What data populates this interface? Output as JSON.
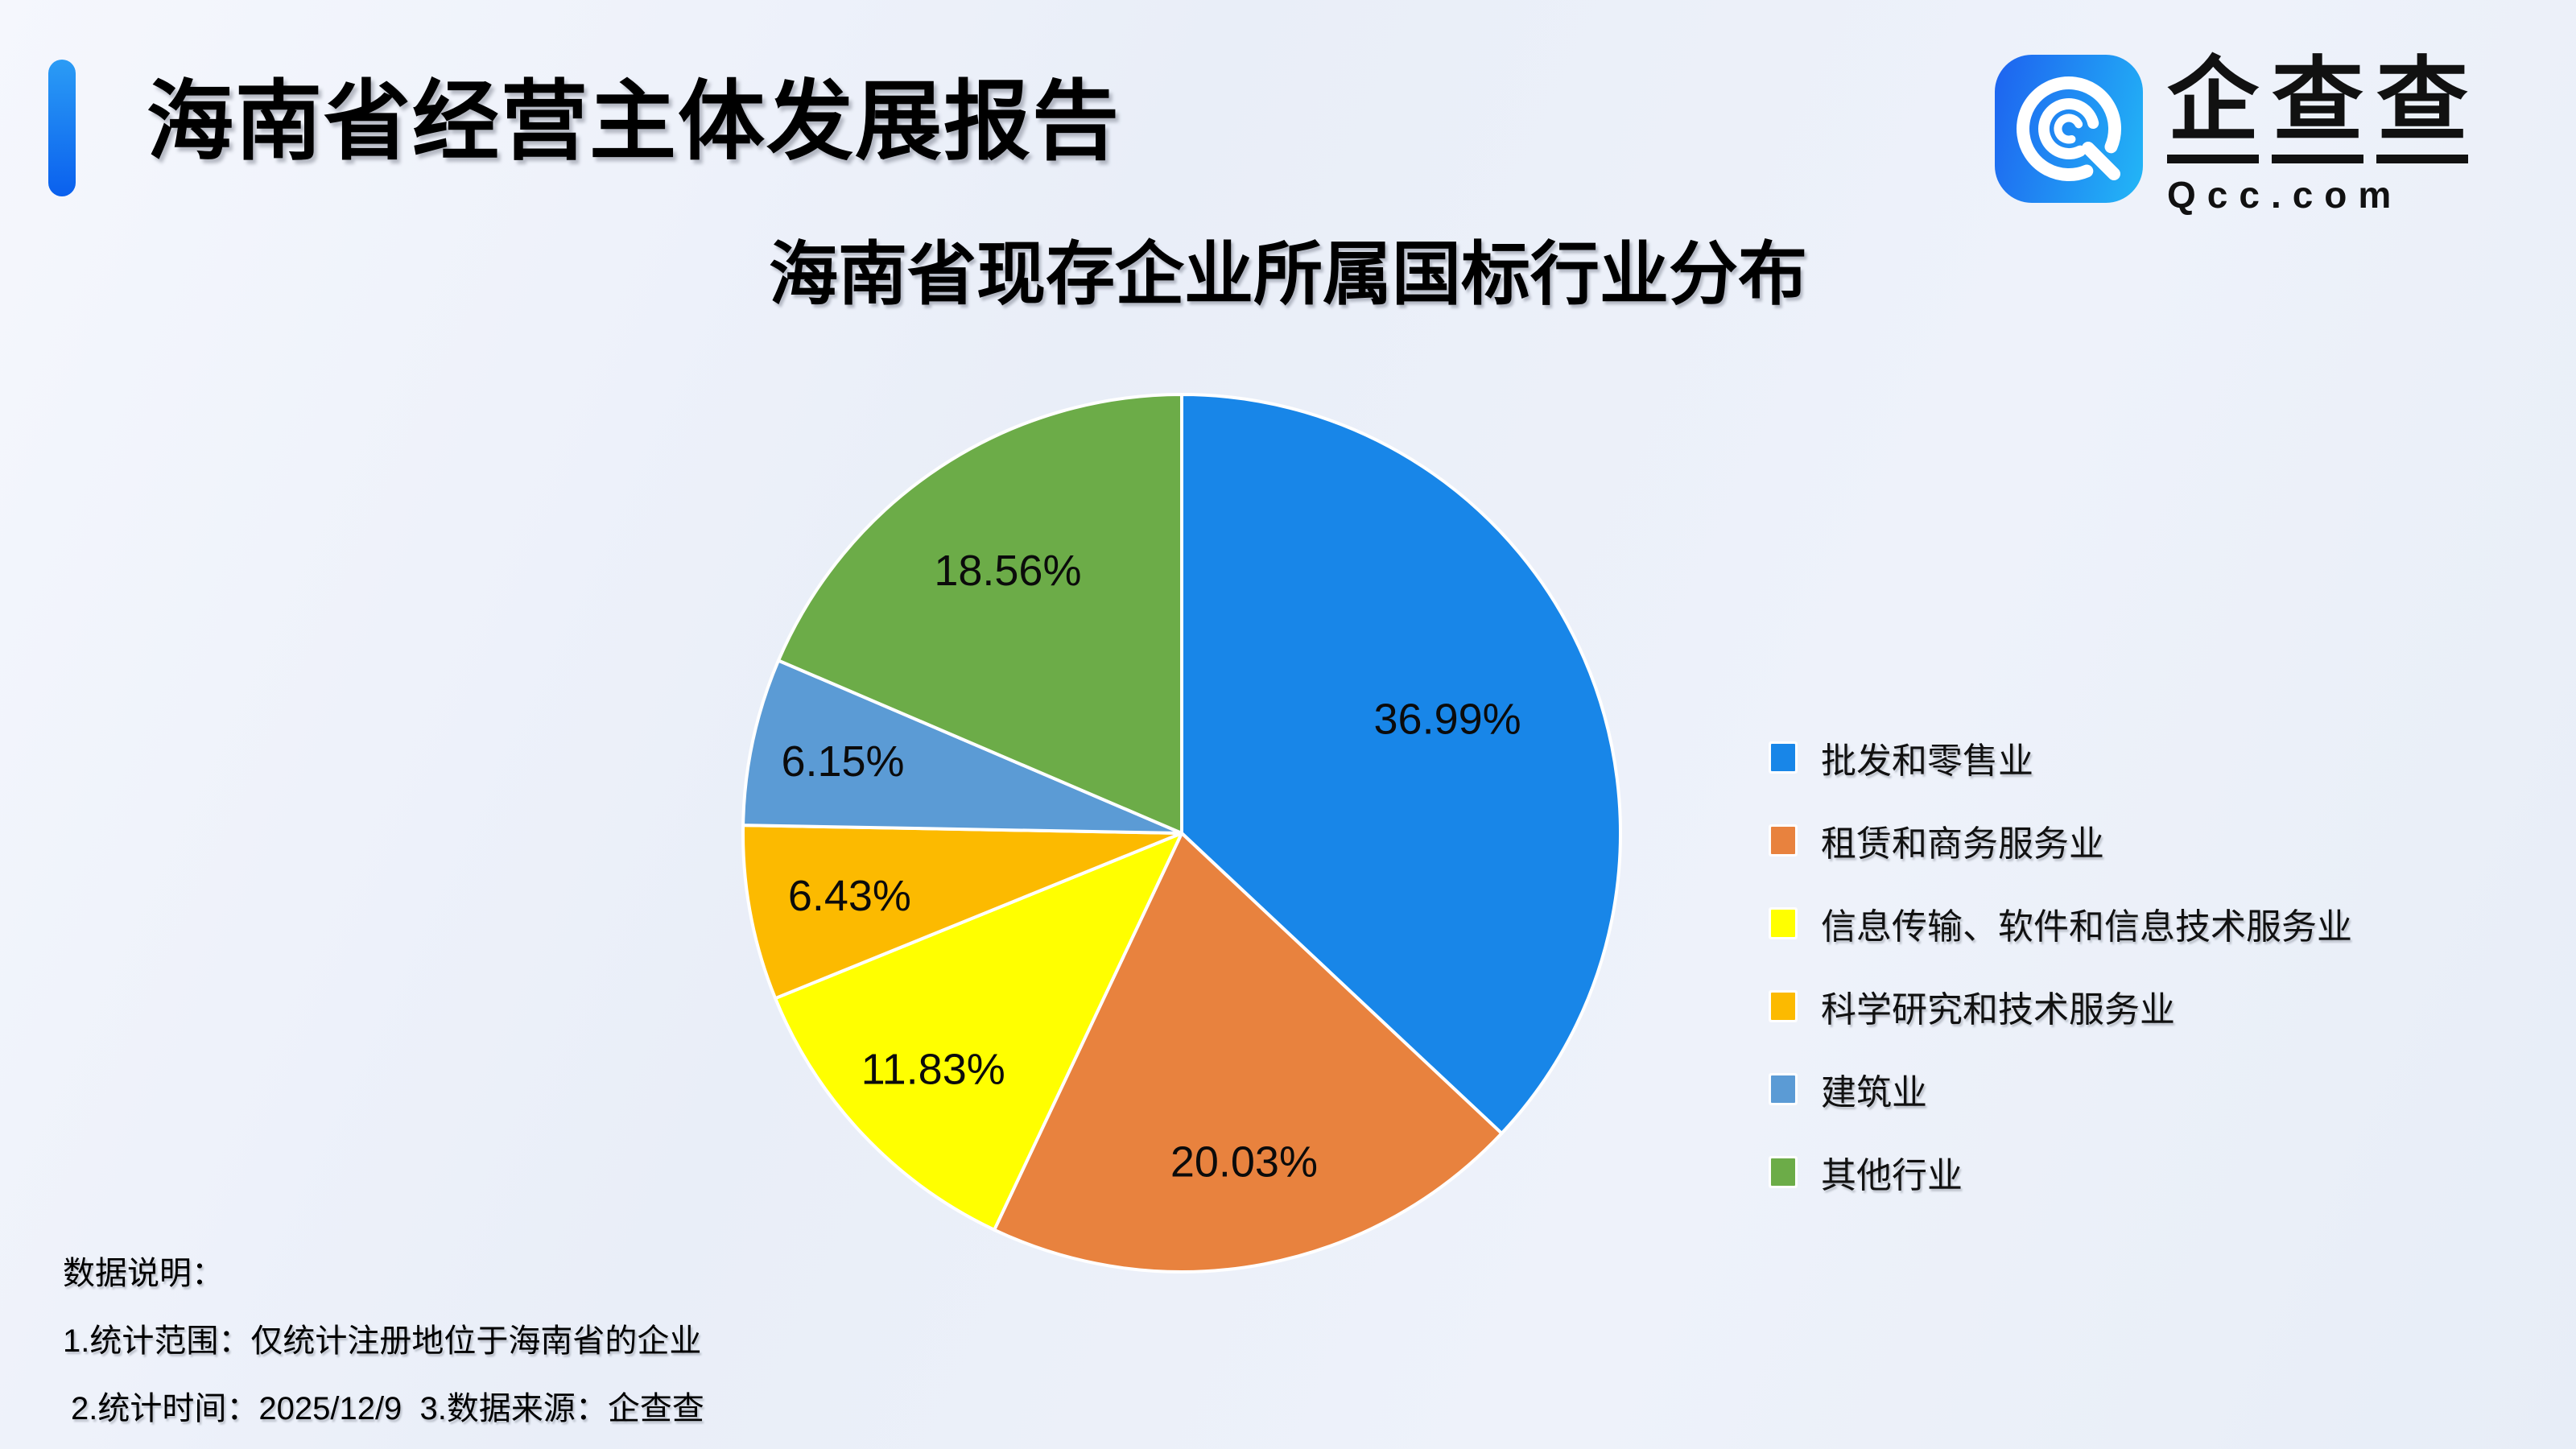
{
  "header": {
    "title": "海南省经营主体发展报告"
  },
  "logo": {
    "brand": "企查查",
    "domain": "Qcc.com",
    "icon": "qcc-logo-icon"
  },
  "chart_data": {
    "type": "pie",
    "title": "海南省现存企业所属国标行业分布",
    "unit": "%",
    "slices": [
      {
        "label": "批发和零售业",
        "value": 36.99,
        "display": "36.99%",
        "color": "#1886E8"
      },
      {
        "label": "租赁和商务服务业",
        "value": 20.03,
        "display": "20.03%",
        "color": "#E8823E"
      },
      {
        "label": "信息传输、软件和信息技术服务业",
        "value": 11.83,
        "display": "11.83%",
        "color": "#FFFF00"
      },
      {
        "label": "科学研究和技术服务业",
        "value": 6.43,
        "display": "6.43%",
        "color": "#FCBA00"
      },
      {
        "label": "建筑业",
        "value": 6.15,
        "display": "6.15%",
        "color": "#5B9BD5"
      },
      {
        "label": "其他行业",
        "value": 18.56,
        "display": "18.56%",
        "color": "#6CAC48"
      }
    ],
    "start_angle_deg": 0,
    "direction": "clockwise",
    "legend_position": "right",
    "label_radius": [
      0.66,
      0.76,
      0.78,
      0.77,
      0.79,
      0.72
    ]
  },
  "footer": {
    "heading": "数据说明：",
    "notes": [
      "1.统计范围：仅统计注册地位于海南省的企业",
      "2.统计时间：2025/12/9  3.数据来源：企查查"
    ]
  },
  "colors": {
    "accent": "#0F6BEF",
    "background": "#EDF1F9",
    "text": "#000000"
  }
}
